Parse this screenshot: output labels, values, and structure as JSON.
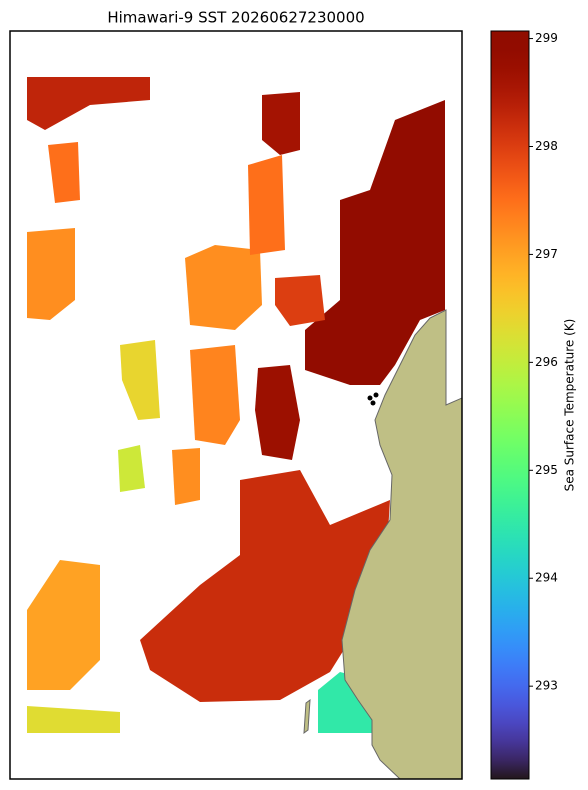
{
  "chart_data": {
    "type": "map",
    "title": "Himawari-9 SST 20260627230000",
    "colorbar": {
      "label": "Sea Surface Temperature (K)",
      "lim": [
        292.14,
        299.07
      ],
      "ticks": [
        293,
        294,
        295,
        296,
        297,
        298,
        299
      ],
      "colormap": "turbo"
    },
    "patches": {
      "values": [
        298.9,
        298.6,
        298.3,
        297.2,
        297.2,
        298.0,
        296.4,
        297.3,
        298.7,
        296.1,
        297.2,
        298.2,
        297.0,
        296.3,
        294.5,
        293.5,
        297.5,
        297.5
      ]
    }
  }
}
